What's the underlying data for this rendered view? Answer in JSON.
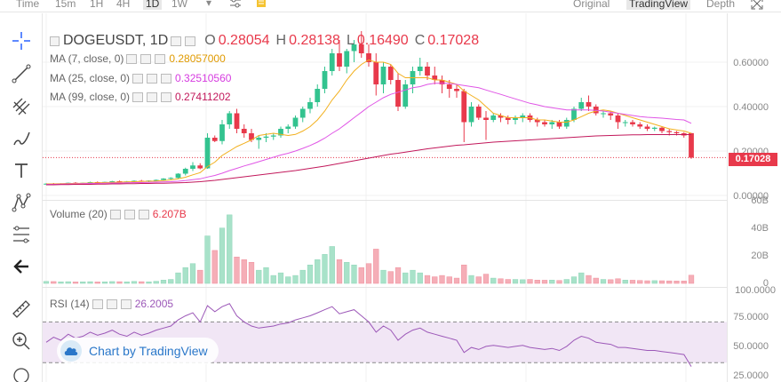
{
  "topbar": {
    "items": [
      {
        "label": "Time"
      },
      {
        "label": "15m"
      },
      {
        "label": "1H"
      },
      {
        "label": "4H"
      },
      {
        "label": "1D"
      },
      {
        "label": "1W"
      }
    ],
    "active": "1D",
    "views": [
      {
        "label": "Original"
      },
      {
        "label": "TradingView"
      },
      {
        "label": "Depth"
      }
    ],
    "active_view": "TradingView"
  },
  "tools": [
    "crosshair-icon",
    "trendline-icon",
    "pitchfork-icon",
    "brush-icon",
    "text-icon",
    "pattern-icon",
    "fib-icon",
    "back-arrow-icon",
    "ruler-icon",
    "zoom-in-icon"
  ],
  "main_legend": {
    "symbol": "DOGEUSDT, 1D",
    "o_label": "O",
    "o": "0.28054",
    "h_label": "H",
    "h": "0.28138",
    "l_label": "L",
    "l": "0.16490",
    "c_label": "C",
    "c": "0.17028"
  },
  "ma_legend": [
    {
      "label": "MA (7, close, 0)",
      "value": "0.28057000",
      "color": "#f2b01e"
    },
    {
      "label": "MA (25, close, 0)",
      "value": "0.32510560",
      "color": "#e056e6"
    },
    {
      "label": "MA (99, close, 0)",
      "value": "0.27411202",
      "color": "#c2185b"
    }
  ],
  "volume_legend": {
    "label": "Volume (20)",
    "value": "6.207B"
  },
  "rsi_legend": {
    "label": "RSI (14)",
    "value": "26.2005"
  },
  "price_axis": [
    "0.60000",
    "0.40000",
    "0.20000",
    "0.00000"
  ],
  "volume_axis": [
    "60B",
    "40B",
    "20B",
    "0"
  ],
  "rsi_axis": [
    "100.0000",
    "75.0000",
    "50.0000",
    "25.0000"
  ],
  "last_price": "0.17028",
  "branding": "Chart by TradingView",
  "colors": {
    "up": "#33c38f",
    "down": "#e8394b",
    "vol_up": "#a8e2c9",
    "vol_down": "#f5aeb7",
    "rsi_line": "#9c58b8",
    "rsi_band": "#f1e6f5"
  },
  "chart_data": {
    "type": "candlestick",
    "candles": [
      [
        0.05,
        0.055,
        0.047,
        0.053
      ],
      [
        0.053,
        0.056,
        0.05,
        0.052
      ],
      [
        0.052,
        0.055,
        0.05,
        0.054
      ],
      [
        0.054,
        0.058,
        0.052,
        0.057
      ],
      [
        0.057,
        0.06,
        0.054,
        0.056
      ],
      [
        0.056,
        0.058,
        0.053,
        0.057
      ],
      [
        0.057,
        0.062,
        0.055,
        0.06
      ],
      [
        0.06,
        0.063,
        0.057,
        0.059
      ],
      [
        0.059,
        0.062,
        0.056,
        0.061
      ],
      [
        0.061,
        0.066,
        0.059,
        0.064
      ],
      [
        0.064,
        0.067,
        0.06,
        0.062
      ],
      [
        0.062,
        0.065,
        0.059,
        0.063
      ],
      [
        0.063,
        0.068,
        0.06,
        0.066
      ],
      [
        0.066,
        0.07,
        0.062,
        0.064
      ],
      [
        0.064,
        0.068,
        0.06,
        0.067
      ],
      [
        0.067,
        0.072,
        0.065,
        0.07
      ],
      [
        0.07,
        0.078,
        0.068,
        0.076
      ],
      [
        0.076,
        0.082,
        0.072,
        0.079
      ],
      [
        0.079,
        0.1,
        0.076,
        0.098
      ],
      [
        0.098,
        0.125,
        0.09,
        0.12
      ],
      [
        0.12,
        0.15,
        0.11,
        0.135
      ],
      [
        0.135,
        0.145,
        0.118,
        0.122
      ],
      [
        0.122,
        0.28,
        0.12,
        0.26
      ],
      [
        0.26,
        0.27,
        0.24,
        0.245
      ],
      [
        0.245,
        0.34,
        0.23,
        0.32
      ],
      [
        0.32,
        0.38,
        0.3,
        0.37
      ],
      [
        0.37,
        0.39,
        0.28,
        0.3
      ],
      [
        0.3,
        0.32,
        0.26,
        0.28
      ],
      [
        0.28,
        0.3,
        0.24,
        0.25
      ],
      [
        0.25,
        0.27,
        0.21,
        0.26
      ],
      [
        0.26,
        0.28,
        0.24,
        0.265
      ],
      [
        0.265,
        0.28,
        0.25,
        0.27
      ],
      [
        0.27,
        0.31,
        0.26,
        0.3
      ],
      [
        0.3,
        0.32,
        0.28,
        0.31
      ],
      [
        0.31,
        0.36,
        0.3,
        0.35
      ],
      [
        0.35,
        0.4,
        0.33,
        0.39
      ],
      [
        0.39,
        0.44,
        0.37,
        0.42
      ],
      [
        0.42,
        0.5,
        0.4,
        0.48
      ],
      [
        0.48,
        0.58,
        0.46,
        0.56
      ],
      [
        0.56,
        0.66,
        0.54,
        0.64
      ],
      [
        0.64,
        0.7,
        0.56,
        0.58
      ],
      [
        0.58,
        0.66,
        0.55,
        0.65
      ],
      [
        0.65,
        0.7,
        0.6,
        0.68
      ],
      [
        0.68,
        0.74,
        0.62,
        0.64
      ],
      [
        0.64,
        0.68,
        0.58,
        0.6
      ],
      [
        0.6,
        0.64,
        0.45,
        0.5
      ],
      [
        0.5,
        0.6,
        0.46,
        0.58
      ],
      [
        0.58,
        0.59,
        0.5,
        0.52
      ],
      [
        0.52,
        0.55,
        0.38,
        0.4
      ],
      [
        0.4,
        0.52,
        0.39,
        0.5
      ],
      [
        0.5,
        0.58,
        0.46,
        0.56
      ],
      [
        0.56,
        0.62,
        0.54,
        0.58
      ],
      [
        0.58,
        0.6,
        0.52,
        0.54
      ],
      [
        0.54,
        0.58,
        0.5,
        0.52
      ],
      [
        0.52,
        0.54,
        0.46,
        0.5
      ],
      [
        0.5,
        0.52,
        0.44,
        0.48
      ],
      [
        0.48,
        0.5,
        0.44,
        0.47
      ],
      [
        0.47,
        0.48,
        0.24,
        0.33
      ],
      [
        0.33,
        0.42,
        0.31,
        0.4
      ],
      [
        0.4,
        0.41,
        0.34,
        0.35
      ],
      [
        0.35,
        0.38,
        0.25,
        0.34
      ],
      [
        0.34,
        0.37,
        0.33,
        0.36
      ],
      [
        0.36,
        0.37,
        0.33,
        0.35
      ],
      [
        0.35,
        0.36,
        0.32,
        0.34
      ],
      [
        0.34,
        0.36,
        0.32,
        0.35
      ],
      [
        0.35,
        0.37,
        0.33,
        0.36
      ],
      [
        0.36,
        0.37,
        0.33,
        0.34
      ],
      [
        0.34,
        0.35,
        0.31,
        0.33
      ],
      [
        0.33,
        0.34,
        0.31,
        0.32
      ],
      [
        0.32,
        0.34,
        0.3,
        0.33
      ],
      [
        0.33,
        0.34,
        0.3,
        0.31
      ],
      [
        0.31,
        0.35,
        0.3,
        0.34
      ],
      [
        0.34,
        0.4,
        0.33,
        0.39
      ],
      [
        0.39,
        0.44,
        0.38,
        0.42
      ],
      [
        0.42,
        0.45,
        0.38,
        0.4
      ],
      [
        0.4,
        0.41,
        0.36,
        0.37
      ],
      [
        0.37,
        0.38,
        0.35,
        0.37
      ],
      [
        0.37,
        0.38,
        0.34,
        0.36
      ],
      [
        0.36,
        0.37,
        0.3,
        0.33
      ],
      [
        0.33,
        0.34,
        0.31,
        0.33
      ],
      [
        0.33,
        0.34,
        0.31,
        0.32
      ],
      [
        0.32,
        0.33,
        0.3,
        0.31
      ],
      [
        0.31,
        0.32,
        0.29,
        0.3
      ],
      [
        0.3,
        0.31,
        0.29,
        0.305
      ],
      [
        0.305,
        0.31,
        0.28,
        0.29
      ],
      [
        0.29,
        0.3,
        0.27,
        0.285
      ],
      [
        0.285,
        0.29,
        0.27,
        0.28
      ],
      [
        0.28,
        0.285,
        0.26,
        0.27
      ],
      [
        0.28054,
        0.28138,
        0.1649,
        0.17028
      ]
    ],
    "volumes": [
      1.5,
      1.4,
      1.2,
      1.3,
      1.1,
      1.2,
      1.3,
      1.1,
      1.2,
      1.4,
      1.3,
      1.2,
      1.5,
      1.3,
      1.2,
      1.6,
      2.5,
      3.0,
      8.0,
      12.0,
      15.0,
      10.0,
      36.0,
      25.0,
      42.0,
      52.0,
      20.0,
      18.0,
      16.0,
      10.0,
      12.0,
      6.0,
      8.0,
      5.0,
      6.0,
      10.0,
      14.0,
      18.0,
      22.0,
      28.0,
      18.0,
      16.0,
      14.0,
      12.0,
      15.0,
      26.0,
      10.0,
      9.0,
      12.0,
      8.0,
      10.0,
      8.0,
      6.0,
      5.0,
      6.0,
      5.0,
      4.0,
      14.0,
      6.0,
      5.0,
      7.0,
      4.0,
      3.5,
      3.0,
      3.0,
      2.8,
      3.0,
      2.5,
      2.4,
      2.5,
      2.2,
      3.0,
      5.0,
      8.0,
      6.0,
      4.0,
      3.0,
      2.8,
      3.5,
      2.5,
      2.4,
      2.2,
      2.0,
      2.1,
      2.0,
      1.9,
      1.8,
      1.8,
      6.2
    ],
    "ma7": [
      0.052,
      0.052,
      0.053,
      0.054,
      0.054,
      0.055,
      0.056,
      0.057,
      0.058,
      0.059,
      0.06,
      0.061,
      0.062,
      0.063,
      0.064,
      0.065,
      0.067,
      0.07,
      0.075,
      0.082,
      0.093,
      0.103,
      0.13,
      0.15,
      0.18,
      0.2,
      0.22,
      0.235,
      0.25,
      0.27,
      0.275,
      0.28,
      0.275,
      0.27,
      0.275,
      0.29,
      0.31,
      0.34,
      0.38,
      0.43,
      0.47,
      0.52,
      0.56,
      0.59,
      0.61,
      0.6,
      0.6,
      0.59,
      0.55,
      0.53,
      0.53,
      0.53,
      0.53,
      0.52,
      0.52,
      0.51,
      0.5,
      0.47,
      0.45,
      0.43,
      0.4,
      0.37,
      0.36,
      0.35,
      0.35,
      0.35,
      0.35,
      0.34,
      0.34,
      0.335,
      0.33,
      0.33,
      0.34,
      0.355,
      0.37,
      0.38,
      0.385,
      0.38,
      0.37,
      0.36,
      0.35,
      0.34,
      0.33,
      0.32,
      0.31,
      0.3,
      0.295,
      0.29,
      0.28
    ],
    "ma25": [
      0.05,
      0.05,
      0.051,
      0.052,
      0.052,
      0.053,
      0.054,
      0.054,
      0.055,
      0.056,
      0.056,
      0.057,
      0.058,
      0.058,
      0.059,
      0.06,
      0.061,
      0.062,
      0.064,
      0.067,
      0.071,
      0.075,
      0.083,
      0.09,
      0.1,
      0.112,
      0.122,
      0.133,
      0.142,
      0.152,
      0.162,
      0.172,
      0.182,
      0.19,
      0.2,
      0.212,
      0.225,
      0.24,
      0.258,
      0.28,
      0.3,
      0.325,
      0.35,
      0.375,
      0.4,
      0.42,
      0.44,
      0.455,
      0.465,
      0.475,
      0.485,
      0.49,
      0.5,
      0.505,
      0.505,
      0.505,
      0.5,
      0.495,
      0.49,
      0.485,
      0.475,
      0.465,
      0.455,
      0.445,
      0.435,
      0.425,
      0.415,
      0.408,
      0.4,
      0.395,
      0.39,
      0.385,
      0.385,
      0.385,
      0.385,
      0.383,
      0.38,
      0.375,
      0.37,
      0.365,
      0.36,
      0.355,
      0.352,
      0.35,
      0.348,
      0.345,
      0.342,
      0.34,
      0.325
    ],
    "ma99": [
      0.048,
      0.048,
      0.049,
      0.049,
      0.05,
      0.05,
      0.05,
      0.051,
      0.051,
      0.052,
      0.052,
      0.053,
      0.053,
      0.054,
      0.054,
      0.055,
      0.055,
      0.056,
      0.057,
      0.058,
      0.06,
      0.062,
      0.065,
      0.068,
      0.072,
      0.076,
      0.08,
      0.084,
      0.088,
      0.092,
      0.096,
      0.1,
      0.104,
      0.108,
      0.112,
      0.117,
      0.122,
      0.127,
      0.132,
      0.138,
      0.144,
      0.15,
      0.156,
      0.162,
      0.168,
      0.174,
      0.18,
      0.186,
      0.19,
      0.195,
      0.2,
      0.205,
      0.21,
      0.214,
      0.218,
      0.222,
      0.226,
      0.228,
      0.231,
      0.234,
      0.237,
      0.24,
      0.242,
      0.244,
      0.246,
      0.248,
      0.25,
      0.252,
      0.254,
      0.256,
      0.258,
      0.26,
      0.262,
      0.264,
      0.266,
      0.268,
      0.269,
      0.27,
      0.271,
      0.272,
      0.273,
      0.273,
      0.274,
      0.274,
      0.274,
      0.274,
      0.274,
      0.274,
      0.274
    ],
    "rsi": [
      50,
      55,
      52,
      58,
      54,
      56,
      60,
      57,
      59,
      62,
      58,
      56,
      60,
      57,
      59,
      62,
      64,
      66,
      72,
      76,
      79,
      70,
      86,
      80,
      85,
      88,
      76,
      70,
      66,
      64,
      65,
      66,
      68,
      69,
      72,
      74,
      76,
      79,
      82,
      85,
      78,
      80,
      82,
      76,
      70,
      60,
      66,
      62,
      52,
      58,
      62,
      64,
      60,
      58,
      56,
      54,
      52,
      40,
      45,
      43,
      46,
      47,
      46,
      45,
      46,
      47,
      45,
      44,
      43,
      44,
      42,
      46,
      52,
      56,
      54,
      50,
      49,
      48,
      45,
      45,
      44,
      43,
      42,
      42,
      41,
      40,
      39,
      38,
      26.2
    ],
    "price_range": [
      0,
      0.8
    ],
    "volume_range": [
      0,
      62
    ],
    "rsi_range": [
      20,
      100
    ],
    "rsi_levels": [
      70,
      30
    ]
  }
}
